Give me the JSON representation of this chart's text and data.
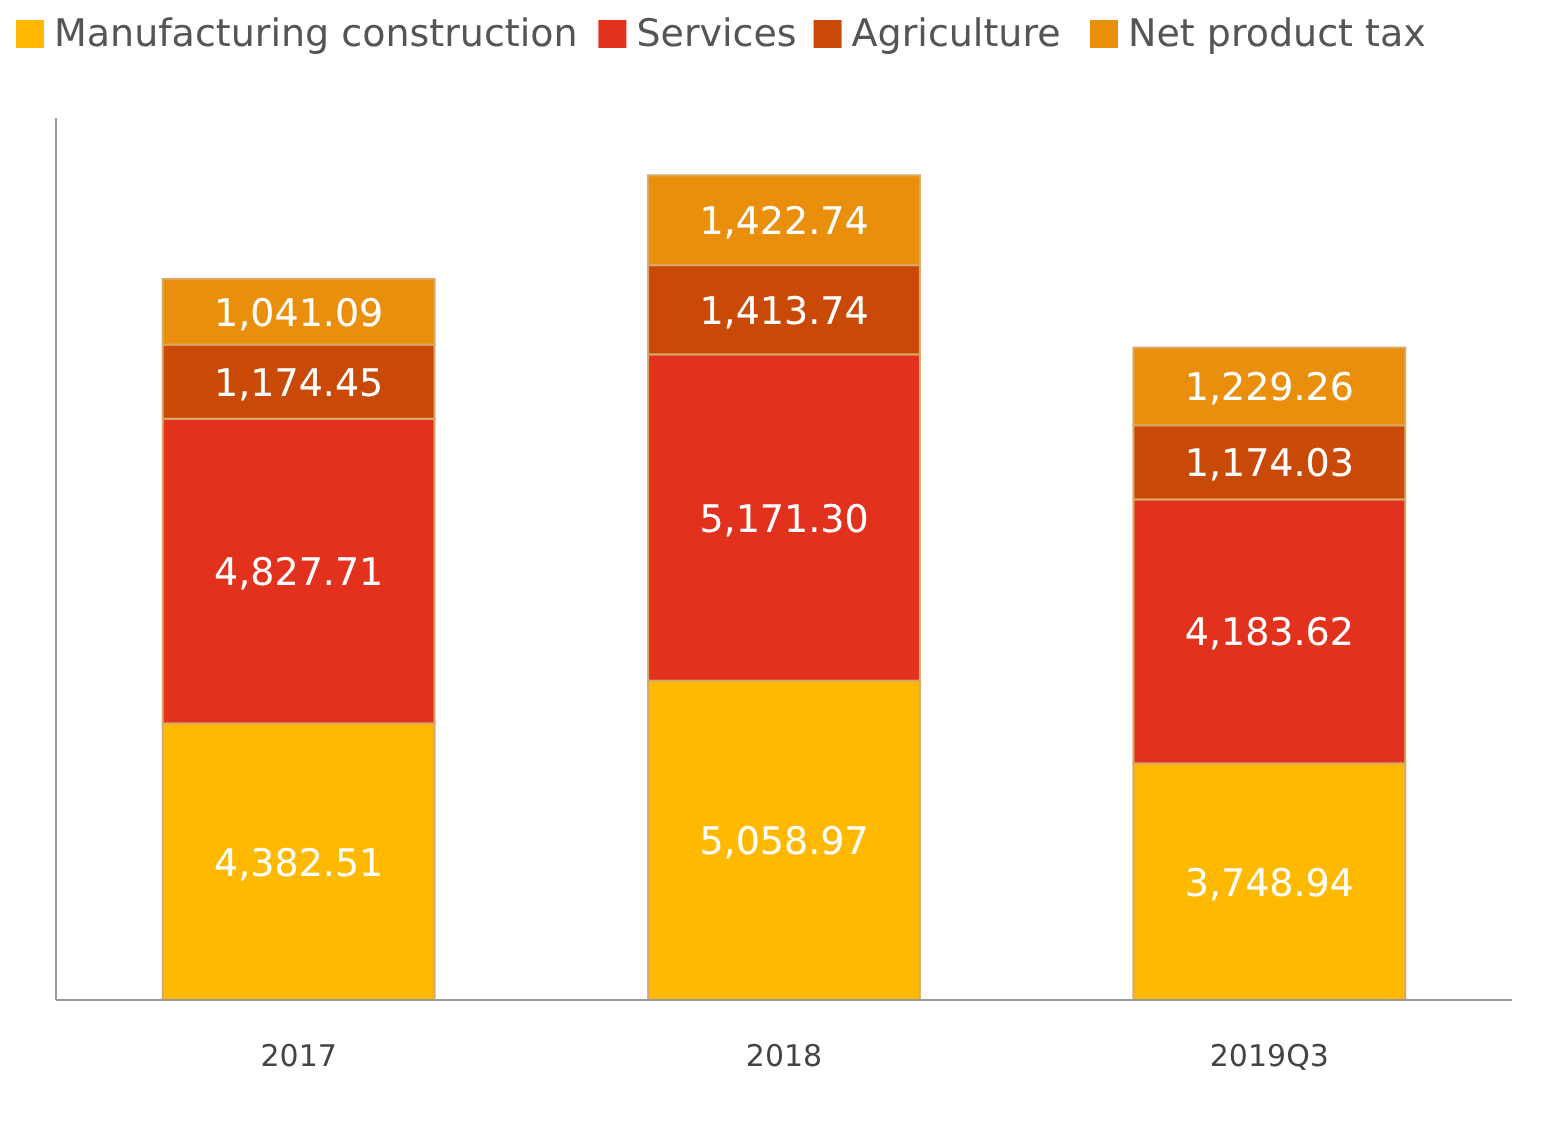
{
  "chart_data": {
    "type": "bar",
    "stacked": true,
    "categories": [
      "2017",
      "2018",
      "2019Q3"
    ],
    "series": [
      {
        "name": "Manufacturing construction",
        "color": "#ffb900",
        "values": [
          4382.51,
          5058.97,
          3748.94
        ],
        "value_labels": [
          "4,382.51",
          "5,058.97",
          "3,748.94"
        ]
      },
      {
        "name": "Services",
        "color": "#e2321e",
        "values": [
          4827.71,
          5171.3,
          4183.62
        ],
        "value_labels": [
          "4,827.71",
          "5,171.30",
          "4,183.62"
        ]
      },
      {
        "name": "Agriculture",
        "color": "#c84a06",
        "values": [
          1174.45,
          1413.74,
          1174.03
        ],
        "value_labels": [
          "1,174.45",
          "1,413.74",
          "1,174.03"
        ]
      },
      {
        "name": "Net product tax",
        "color": "#ea8f0c",
        "values": [
          1041.09,
          1422.74,
          1229.26
        ],
        "value_labels": [
          "1,041.09",
          "1,422.74",
          "1,229.26"
        ]
      }
    ],
    "tick_labels": "x",
    "legend": "top",
    "grid": false
  }
}
